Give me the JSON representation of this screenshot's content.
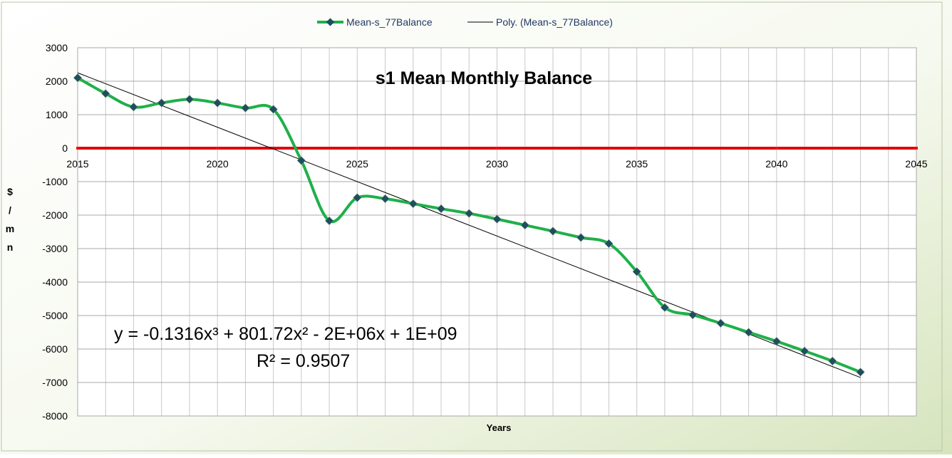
{
  "chart_data": {
    "type": "line",
    "title": "s1 Mean Monthly Balance",
    "xlabel": "Years",
    "ylabel": "$ / m n",
    "xlim": [
      2015,
      2045
    ],
    "ylim": [
      -8000,
      3000
    ],
    "x_ticks": [
      2015,
      2020,
      2025,
      2030,
      2035,
      2040,
      2045
    ],
    "y_ticks": [
      3000,
      2000,
      1000,
      0,
      -1000,
      -2000,
      -3000,
      -4000,
      -5000,
      -6000,
      -7000,
      -8000
    ],
    "grid": true,
    "legend_position": "top",
    "series": [
      {
        "name": "Mean-s_77Balance",
        "color": "#1fb04a",
        "marker_color": "#1f4e5f",
        "x": [
          2015,
          2016,
          2017,
          2018,
          2019,
          2020,
          2021,
          2022,
          2023,
          2024,
          2025,
          2026,
          2027,
          2028,
          2029,
          2030,
          2031,
          2032,
          2033,
          2034,
          2035,
          2036,
          2037,
          2038,
          2039,
          2040,
          2041,
          2042,
          2043
        ],
        "y": [
          2100,
          1630,
          1230,
          1350,
          1460,
          1350,
          1200,
          1160,
          -370,
          -2170,
          -1480,
          -1510,
          -1660,
          -1810,
          -1950,
          -2120,
          -2300,
          -2480,
          -2670,
          -2850,
          -3690,
          -4760,
          -4980,
          -5230,
          -5500,
          -5770,
          -6060,
          -6360,
          -6690
        ]
      },
      {
        "name": "Poly. (Mean-s_77Balance)",
        "color": "#000000",
        "x": [
          2015,
          2043
        ],
        "y": [
          2250,
          -6850
        ]
      }
    ],
    "reference_line": {
      "y": 0,
      "color": "#e00000"
    },
    "annotation": {
      "equation": "y = -0.1316x³ + 801.72x² - 2E+06x + 1E+09",
      "r2": "R² = 0.9507"
    }
  }
}
